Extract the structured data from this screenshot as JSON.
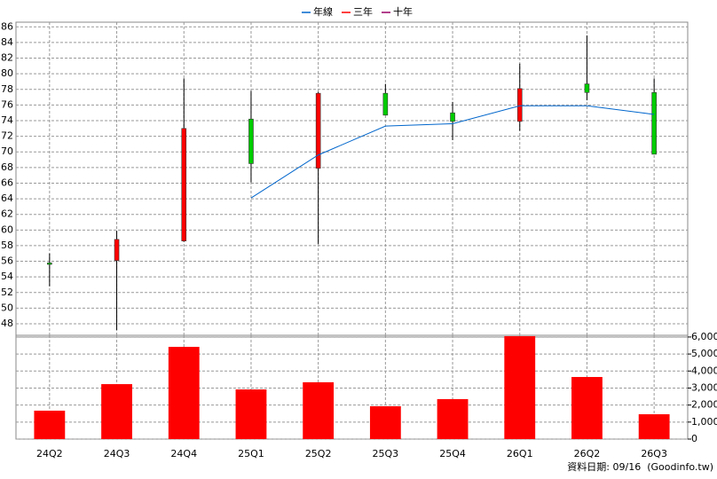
{
  "chart_data": {
    "type": "candlestick",
    "categories": [
      "24Q2",
      "24Q3",
      "24Q4",
      "25Q1",
      "25Q2",
      "25Q3",
      "25Q4",
      "26Q1",
      "26Q2",
      "26Q3"
    ],
    "candles": {
      "up_color": "#ff0000",
      "down_color": "#00cc00",
      "open": [
        55.8,
        56.1,
        58.6,
        74.2,
        67.9,
        77.5,
        75.0,
        73.9,
        78.7,
        77.6
      ],
      "high": [
        57.0,
        59.9,
        79.4,
        77.8,
        77.7,
        78.7,
        76.4,
        81.3,
        84.9,
        79.4
      ],
      "low": [
        52.8,
        47.2,
        58.5,
        66.1,
        58.2,
        74.7,
        71.5,
        72.7,
        76.6,
        69.7
      ],
      "close": [
        55.6,
        58.8,
        73.0,
        68.5,
        77.5,
        74.7,
        73.9,
        78.1,
        77.6,
        69.7
      ]
    },
    "series": [
      {
        "name": "年線",
        "color": "#0066cc",
        "values": [
          null,
          null,
          null,
          64.1,
          69.6,
          73.3,
          73.6,
          75.9,
          75.9,
          74.8
        ]
      },
      {
        "name": "三年",
        "color": "#ff0000",
        "values": [
          null,
          null,
          null,
          null,
          null,
          null,
          null,
          null,
          null,
          null
        ]
      },
      {
        "name": "十年",
        "color": "#990066",
        "values": [
          null,
          null,
          null,
          null,
          null,
          null,
          null,
          null,
          null,
          null
        ]
      }
    ],
    "ylim": [
      46.3,
      86.6
    ],
    "yticks": [
      48,
      50,
      52,
      54,
      56,
      58,
      60,
      62,
      64,
      66,
      68,
      70,
      72,
      74,
      76,
      78,
      80,
      82,
      84,
      86
    ],
    "volume": {
      "color": "#ff0000",
      "axis": "y2",
      "values": [
        1670,
        3230,
        5420,
        2920,
        3340,
        1930,
        2350,
        6050,
        3650,
        1460
      ]
    },
    "y2lim": [
      0,
      6100
    ],
    "y2ticks": [
      0,
      {
        "value": 1000,
        "label": "1,000"
      },
      {
        "value": 2000,
        "label": "2,000"
      },
      {
        "value": 3000,
        "label": "3,000"
      },
      {
        "value": 4000,
        "label": "4,000"
      },
      {
        "value": 5000,
        "label": "5,000"
      },
      {
        "value": 6000,
        "label": "6,000"
      }
    ],
    "grid": true,
    "footer": "資料日期: 09/16  (Goodinfo.tw)"
  }
}
